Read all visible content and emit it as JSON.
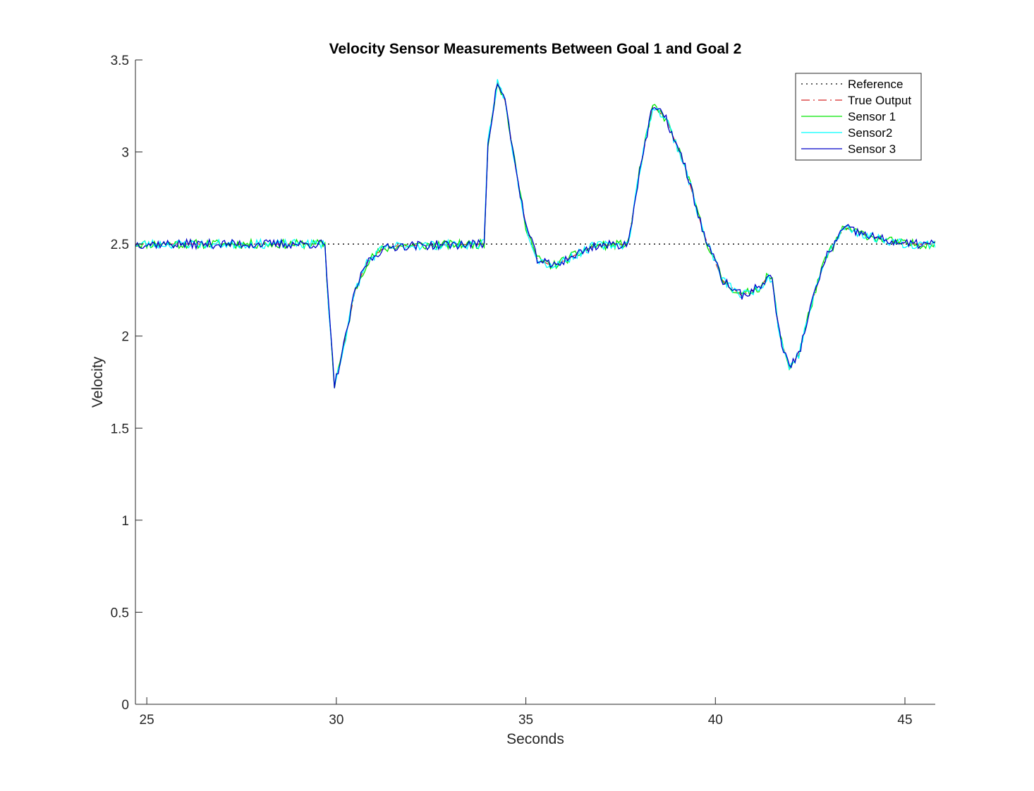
{
  "chart_data": {
    "type": "line",
    "title": "Velocity Sensor Measurements Between Goal 1 and Goal 2",
    "xlabel": "Seconds",
    "ylabel": "Velocity",
    "xlim": [
      24.7,
      45.8
    ],
    "ylim": [
      0,
      3.5
    ],
    "xticks": [
      "25",
      "30",
      "35",
      "40",
      "45"
    ],
    "yticks": [
      "0",
      "0.5",
      "1",
      "1.5",
      "2",
      "2.5",
      "3",
      "3.5"
    ],
    "grid": false,
    "legend_position": "top-right",
    "noise_amplitude": 0.025,
    "sample_step": 0.1,
    "series": [
      {
        "name": "Reference",
        "color": "#000000",
        "style": "dotted",
        "x": [
          24.7,
          45.8
        ],
        "y": [
          2.5,
          2.5
        ]
      },
      {
        "name": "True Output",
        "color": "#d62728",
        "style": "dashdot",
        "x": [
          24.7,
          29.7,
          29.75,
          29.95,
          30.2,
          30.5,
          30.8,
          31.2,
          31.6,
          33.9,
          34.0,
          34.25,
          34.45,
          34.7,
          35.0,
          35.3,
          35.7,
          36.2,
          36.8,
          37.7,
          38.0,
          38.35,
          38.7,
          39.2,
          39.7,
          40.2,
          40.7,
          41.2,
          41.4,
          41.5,
          41.7,
          41.95,
          42.2,
          42.5,
          42.9,
          43.4,
          43.8,
          44.3,
          45.0,
          45.8
        ],
        "y": [
          2.5,
          2.5,
          2.3,
          1.73,
          1.95,
          2.25,
          2.4,
          2.47,
          2.49,
          2.5,
          3.05,
          3.38,
          3.28,
          2.95,
          2.6,
          2.42,
          2.38,
          2.43,
          2.49,
          2.5,
          2.9,
          3.25,
          3.18,
          2.92,
          2.55,
          2.3,
          2.22,
          2.27,
          2.33,
          2.3,
          2.0,
          1.83,
          1.9,
          2.15,
          2.42,
          2.59,
          2.56,
          2.53,
          2.5,
          2.5
        ]
      },
      {
        "name": "Sensor 1",
        "color": "#00e600",
        "style": "solid",
        "noise_seed": 11
      },
      {
        "name": "Sensor2",
        "color": "#00ffff",
        "style": "solid",
        "noise_seed": 23
      },
      {
        "name": "Sensor 3",
        "color": "#0000c8",
        "style": "solid",
        "noise_seed": 37
      }
    ]
  }
}
